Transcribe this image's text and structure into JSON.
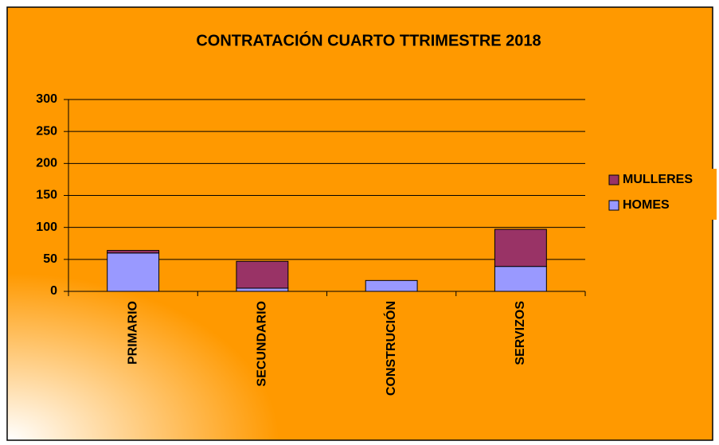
{
  "chart_data": {
    "type": "stacked-bar",
    "title": "CONTRATACIÓN CUARTO TTRIMESTRE 2018",
    "categories": [
      "PRIMARIO",
      "SECUNDARIO",
      "CONSTRUCIÓN",
      "SERVIZOS"
    ],
    "series": [
      {
        "name": "HOMES",
        "color": "#9999ff",
        "values": [
          60,
          5,
          17,
          39
        ]
      },
      {
        "name": "MULLERES",
        "color": "#993366",
        "values": [
          4,
          42,
          0,
          58
        ]
      }
    ],
    "ylim": [
      0,
      300
    ],
    "yticks": [
      0,
      50,
      100,
      150,
      200,
      250,
      300
    ],
    "grid": true,
    "legend": "right"
  }
}
